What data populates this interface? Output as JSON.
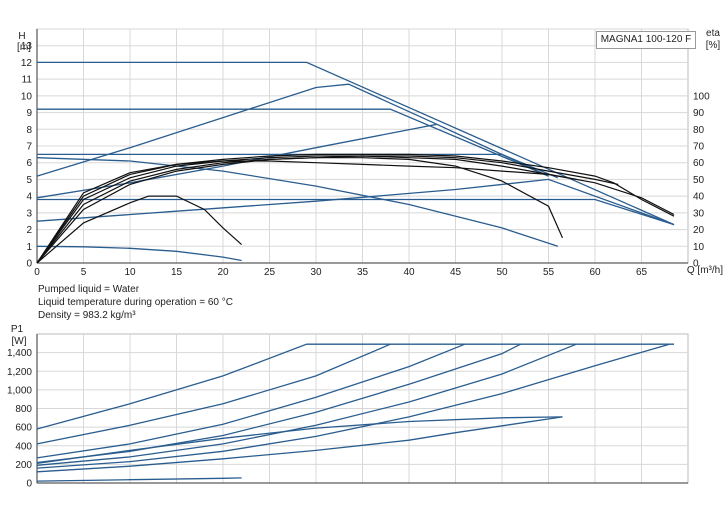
{
  "model": "MAGNA1 100-120 F",
  "info": {
    "liquid": "Pumped liquid = Water",
    "temperature": "Liquid temperature during operation = 60 °C",
    "density": "Density = 983.2 kg/m³"
  },
  "colors": {
    "pump_curve": "#2a5d8f",
    "efficiency_curve": "#111111",
    "grid": "#d8d8d8"
  },
  "chart_data": [
    {
      "type": "line",
      "xlabel": "Q [m³/h]",
      "ylabel": "H",
      "ylabel_unit": "[m]",
      "y2label": "eta",
      "y2label_unit": "[%]",
      "xlim": [
        0,
        70
      ],
      "ylim": [
        0,
        14
      ],
      "y2lim": [
        0,
        140
      ],
      "x_ticks": [
        0,
        5,
        10,
        15,
        20,
        25,
        30,
        35,
        40,
        45,
        50,
        55,
        60,
        65
      ],
      "y_ticks": [
        0,
        1,
        2,
        3,
        4,
        5,
        6,
        7,
        8,
        9,
        10,
        11,
        12,
        13,
        14
      ],
      "y2_ticks": [
        0,
        10,
        20,
        30,
        40,
        50,
        60,
        70,
        80,
        90,
        100
      ],
      "grid": true,
      "head_series": [
        {
          "points": [
            [
              0,
              12
            ],
            [
              29,
              12
            ],
            [
              68.5,
              2.3
            ]
          ]
        },
        {
          "points": [
            [
              0,
              9.2
            ],
            [
              38,
              9.2
            ],
            [
              55,
              5.2
            ]
          ]
        },
        {
          "points": [
            [
              0,
              6.5
            ],
            [
              30,
              6.5
            ],
            [
              50,
              6.5
            ],
            [
              56,
              5.1
            ]
          ]
        },
        {
          "points": [
            [
              0,
              3.8
            ],
            [
              30,
              3.8
            ],
            [
              60,
              3.8
            ],
            [
              68.5,
              2.3
            ]
          ]
        },
        {
          "points": [
            [
              0,
              1
            ],
            [
              5,
              0.97
            ],
            [
              10,
              0.88
            ],
            [
              15,
              0.7
            ],
            [
              20,
              0.35
            ],
            [
              22,
              0.15
            ]
          ]
        },
        {
          "points": [
            [
              0,
              6.3
            ],
            [
              10,
              6.1
            ],
            [
              20,
              5.5
            ],
            [
              30,
              4.6
            ],
            [
              40,
              3.5
            ],
            [
              50,
              2.1
            ],
            [
              56,
              1.0
            ]
          ]
        },
        {
          "points": [
            [
              0,
              5.2
            ],
            [
              10,
              6.9
            ],
            [
              20,
              8.7
            ],
            [
              30,
              10.5
            ],
            [
              33.5,
              10.7
            ],
            [
              43,
              8.3
            ],
            [
              55,
              5.2
            ]
          ]
        },
        {
          "points": [
            [
              0,
              3.9
            ],
            [
              10,
              4.8
            ],
            [
              20,
              5.8
            ],
            [
              30,
              6.9
            ],
            [
              43,
              8.3
            ]
          ]
        },
        {
          "points": [
            [
              0,
              2.5
            ],
            [
              15,
              3.1
            ],
            [
              30,
              3.7
            ],
            [
              45,
              4.4
            ],
            [
              55,
              5.0
            ],
            [
              68.5,
              2.3
            ]
          ]
        }
      ],
      "efficiency_series": [
        {
          "points": [
            [
              0,
              0
            ],
            [
              5,
              24
            ],
            [
              10,
              36
            ],
            [
              12,
              40
            ],
            [
              15,
              40
            ],
            [
              18,
              32
            ],
            [
              20,
              21
            ],
            [
              22,
              11
            ]
          ]
        },
        {
          "points": [
            [
              0,
              0
            ],
            [
              5,
              32
            ],
            [
              10,
              47
            ],
            [
              15,
              55
            ],
            [
              20,
              59
            ],
            [
              25,
              62
            ],
            [
              30,
              63
            ],
            [
              35,
              63
            ],
            [
              40,
              62
            ],
            [
              45,
              58
            ],
            [
              50,
              49
            ],
            [
              55,
              34
            ],
            [
              56.5,
              15
            ]
          ]
        },
        {
          "points": [
            [
              0,
              0
            ],
            [
              5,
              35
            ],
            [
              10,
              49
            ],
            [
              15,
              56
            ],
            [
              20,
              60
            ],
            [
              25,
              62
            ],
            [
              30,
              63
            ],
            [
              35,
              64
            ],
            [
              40,
              63
            ],
            [
              45,
              62
            ],
            [
              50,
              58
            ],
            [
              55,
              53
            ],
            [
              58,
              50
            ]
          ]
        },
        {
          "points": [
            [
              0,
              0
            ],
            [
              5,
              38
            ],
            [
              10,
              51
            ],
            [
              15,
              58
            ],
            [
              20,
              61
            ],
            [
              25,
              63
            ],
            [
              30,
              64
            ],
            [
              35,
              64
            ],
            [
              40,
              64
            ],
            [
              45,
              63
            ],
            [
              50,
              60
            ],
            [
              55,
              55
            ],
            [
              60,
              50
            ],
            [
              62.5,
              47
            ]
          ]
        },
        {
          "points": [
            [
              0,
              0
            ],
            [
              5,
              40
            ],
            [
              10,
              53
            ],
            [
              15,
              59
            ],
            [
              20,
              62
            ],
            [
              25,
              64
            ],
            [
              30,
              65
            ],
            [
              35,
              65
            ],
            [
              40,
              65
            ],
            [
              45,
              64
            ],
            [
              50,
              61
            ],
            [
              55,
              57
            ],
            [
              60,
              52
            ],
            [
              62,
              48
            ],
            [
              65,
              38
            ],
            [
              68.5,
              28
            ]
          ]
        },
        {
          "points": [
            [
              0,
              0
            ],
            [
              5,
              42
            ],
            [
              10,
              54
            ],
            [
              15,
              59
            ],
            [
              20,
              61
            ],
            [
              25,
              61
            ],
            [
              30,
              60
            ],
            [
              35,
              59
            ],
            [
              40,
              58
            ],
            [
              45,
              57
            ],
            [
              50,
              55
            ],
            [
              55,
              53
            ],
            [
              60,
              48
            ],
            [
              65,
              39
            ],
            [
              68.5,
              29
            ]
          ]
        }
      ]
    },
    {
      "type": "line",
      "ylabel": "P1",
      "ylabel_unit": "[W]",
      "xlim": [
        0,
        70
      ],
      "ylim": [
        0,
        1600
      ],
      "y_ticks": [
        0,
        200,
        400,
        600,
        800,
        1000,
        1200,
        1400
      ],
      "y_tick_labels": [
        "0",
        "200",
        "400",
        "600",
        "800",
        "1,000",
        "1,200",
        "1,400"
      ],
      "grid": true,
      "power_series": [
        {
          "points": [
            [
              0,
              580
            ],
            [
              10,
              850
            ],
            [
              20,
              1150
            ],
            [
              29,
              1490
            ],
            [
              68.5,
              1490
            ]
          ]
        },
        {
          "points": [
            [
              0,
              420
            ],
            [
              10,
              620
            ],
            [
              20,
              850
            ],
            [
              30,
              1150
            ],
            [
              38,
              1490
            ]
          ]
        },
        {
          "points": [
            [
              0,
              270
            ],
            [
              10,
              420
            ],
            [
              20,
              630
            ],
            [
              30,
              920
            ],
            [
              40,
              1250
            ],
            [
              46,
              1490
            ]
          ]
        },
        {
          "points": [
            [
              0,
              220
            ],
            [
              10,
              340
            ],
            [
              20,
              510
            ],
            [
              30,
              760
            ],
            [
              40,
              1060
            ],
            [
              50,
              1390
            ],
            [
              52,
              1490
            ]
          ]
        },
        {
          "points": [
            [
              0,
              190
            ],
            [
              10,
              280
            ],
            [
              20,
              420
            ],
            [
              30,
              620
            ],
            [
              40,
              870
            ],
            [
              50,
              1170
            ],
            [
              58,
              1490
            ]
          ]
        },
        {
          "points": [
            [
              0,
              160
            ],
            [
              10,
              230
            ],
            [
              20,
              340
            ],
            [
              30,
              500
            ],
            [
              40,
              710
            ],
            [
              50,
              960
            ],
            [
              60,
              1260
            ],
            [
              68,
              1490
            ]
          ]
        },
        {
          "points": [
            [
              0,
              210
            ],
            [
              10,
              350
            ],
            [
              20,
              480
            ],
            [
              30,
              590
            ],
            [
              40,
              660
            ],
            [
              50,
              700
            ],
            [
              56.5,
              710
            ]
          ]
        },
        {
          "points": [
            [
              0,
              120
            ],
            [
              10,
              180
            ],
            [
              20,
              260
            ],
            [
              30,
              350
            ],
            [
              40,
              460
            ],
            [
              45,
              540
            ],
            [
              56.5,
              710
            ]
          ]
        },
        {
          "points": [
            [
              0,
              20
            ],
            [
              10,
              35
            ],
            [
              20,
              50
            ],
            [
              22,
              55
            ]
          ]
        }
      ]
    }
  ]
}
